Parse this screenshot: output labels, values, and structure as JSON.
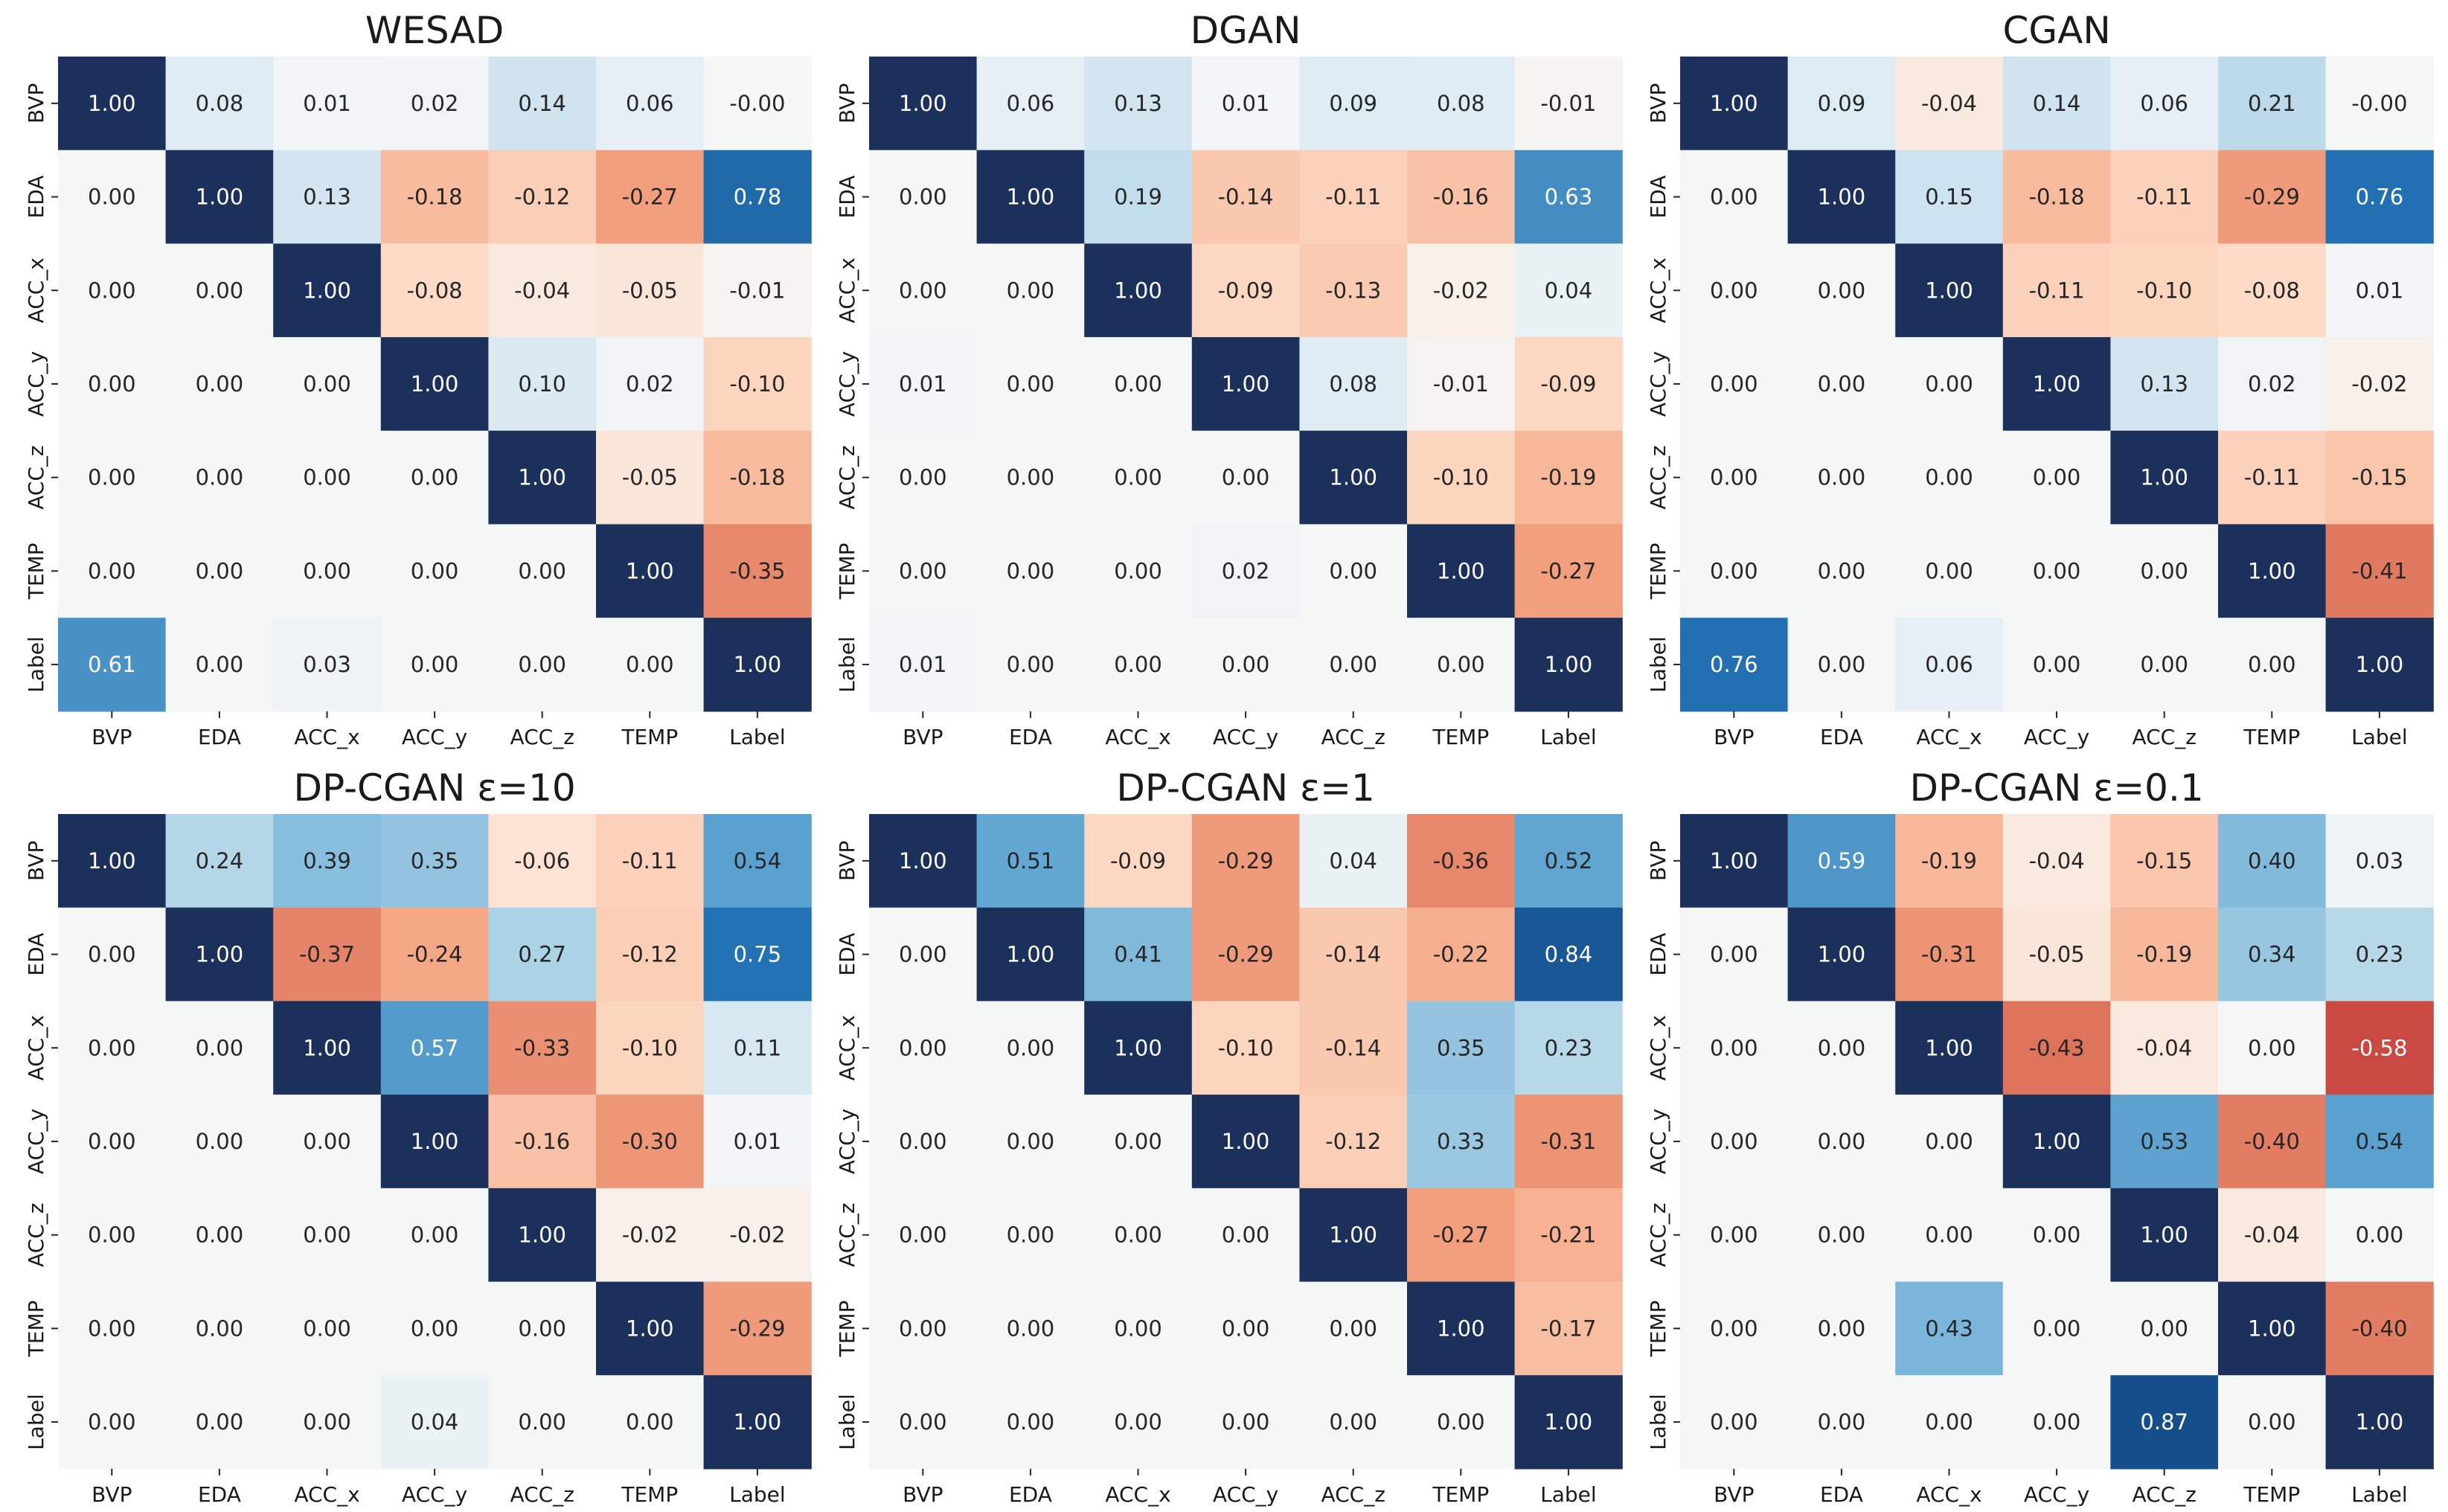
{
  "chart_data": [
    {
      "type": "heatmap",
      "title": "WESAD",
      "rows": [
        "BVP",
        "EDA",
        "ACC_x",
        "ACC_y",
        "ACC_z",
        "TEMP",
        "Label"
      ],
      "columns": [
        "BVP",
        "EDA",
        "ACC_x",
        "ACC_y",
        "ACC_z",
        "TEMP",
        "Label"
      ],
      "values": [
        [
          "1.00",
          "0.08",
          "0.01",
          "0.02",
          "0.14",
          "0.06",
          "-0.00"
        ],
        [
          "0.00",
          "1.00",
          "0.13",
          "-0.18",
          "-0.12",
          "-0.27",
          "0.78"
        ],
        [
          "0.00",
          "0.00",
          "1.00",
          "-0.08",
          "-0.04",
          "-0.05",
          "-0.01"
        ],
        [
          "0.00",
          "0.00",
          "0.00",
          "1.00",
          "0.10",
          "0.02",
          "-0.10"
        ],
        [
          "0.00",
          "0.00",
          "0.00",
          "0.00",
          "1.00",
          "-0.05",
          "-0.18"
        ],
        [
          "0.00",
          "0.00",
          "0.00",
          "0.00",
          "0.00",
          "1.00",
          "-0.35"
        ],
        [
          "0.61",
          "0.00",
          "0.03",
          "0.00",
          "0.00",
          "0.00",
          "1.00"
        ]
      ],
      "vmin": -1,
      "vmax": 1,
      "colormap": "RdBu"
    },
    {
      "type": "heatmap",
      "title": "DGAN",
      "rows": [
        "BVP",
        "EDA",
        "ACC_x",
        "ACC_y",
        "ACC_z",
        "TEMP",
        "Label"
      ],
      "columns": [
        "BVP",
        "EDA",
        "ACC_x",
        "ACC_y",
        "ACC_z",
        "TEMP",
        "Label"
      ],
      "values": [
        [
          "1.00",
          "0.06",
          "0.13",
          "0.01",
          "0.09",
          "0.08",
          "-0.01"
        ],
        [
          "0.00",
          "1.00",
          "0.19",
          "-0.14",
          "-0.11",
          "-0.16",
          "0.63"
        ],
        [
          "0.00",
          "0.00",
          "1.00",
          "-0.09",
          "-0.13",
          "-0.02",
          "0.04"
        ],
        [
          "0.01",
          "0.00",
          "0.00",
          "1.00",
          "0.08",
          "-0.01",
          "-0.09"
        ],
        [
          "0.00",
          "0.00",
          "0.00",
          "0.00",
          "1.00",
          "-0.10",
          "-0.19"
        ],
        [
          "0.00",
          "0.00",
          "0.00",
          "0.02",
          "0.00",
          "1.00",
          "-0.27"
        ],
        [
          "0.01",
          "0.00",
          "0.00",
          "0.00",
          "0.00",
          "0.00",
          "1.00"
        ]
      ],
      "vmin": -1,
      "vmax": 1,
      "colormap": "RdBu"
    },
    {
      "type": "heatmap",
      "title": "CGAN",
      "rows": [
        "BVP",
        "EDA",
        "ACC_x",
        "ACC_y",
        "ACC_z",
        "TEMP",
        "Label"
      ],
      "columns": [
        "BVP",
        "EDA",
        "ACC_x",
        "ACC_y",
        "ACC_z",
        "TEMP",
        "Label"
      ],
      "values": [
        [
          "1.00",
          "0.09",
          "-0.04",
          "0.14",
          "0.06",
          "0.21",
          "-0.00"
        ],
        [
          "0.00",
          "1.00",
          "0.15",
          "-0.18",
          "-0.11",
          "-0.29",
          "0.76"
        ],
        [
          "0.00",
          "0.00",
          "1.00",
          "-0.11",
          "-0.10",
          "-0.08",
          "0.01"
        ],
        [
          "0.00",
          "0.00",
          "0.00",
          "1.00",
          "0.13",
          "0.02",
          "-0.02"
        ],
        [
          "0.00",
          "0.00",
          "0.00",
          "0.00",
          "1.00",
          "-0.11",
          "-0.15"
        ],
        [
          "0.00",
          "0.00",
          "0.00",
          "0.00",
          "0.00",
          "1.00",
          "-0.41"
        ],
        [
          "0.76",
          "0.00",
          "0.06",
          "0.00",
          "0.00",
          "0.00",
          "1.00"
        ]
      ],
      "vmin": -1,
      "vmax": 1,
      "colormap": "RdBu"
    },
    {
      "type": "heatmap",
      "title": "DP-CGAN ε=10",
      "rows": [
        "BVP",
        "EDA",
        "ACC_x",
        "ACC_y",
        "ACC_z",
        "TEMP",
        "Label"
      ],
      "columns": [
        "BVP",
        "EDA",
        "ACC_x",
        "ACC_y",
        "ACC_z",
        "TEMP",
        "Label"
      ],
      "values": [
        [
          "1.00",
          "0.24",
          "0.39",
          "0.35",
          "-0.06",
          "-0.11",
          "0.54"
        ],
        [
          "0.00",
          "1.00",
          "-0.37",
          "-0.24",
          "0.27",
          "-0.12",
          "0.75"
        ],
        [
          "0.00",
          "0.00",
          "1.00",
          "0.57",
          "-0.33",
          "-0.10",
          "0.11"
        ],
        [
          "0.00",
          "0.00",
          "0.00",
          "1.00",
          "-0.16",
          "-0.30",
          "0.01"
        ],
        [
          "0.00",
          "0.00",
          "0.00",
          "0.00",
          "1.00",
          "-0.02",
          "-0.02"
        ],
        [
          "0.00",
          "0.00",
          "0.00",
          "0.00",
          "0.00",
          "1.00",
          "-0.29"
        ],
        [
          "0.00",
          "0.00",
          "0.00",
          "0.04",
          "0.00",
          "0.00",
          "1.00"
        ]
      ],
      "vmin": -1,
      "vmax": 1,
      "colormap": "RdBu"
    },
    {
      "type": "heatmap",
      "title": "DP-CGAN ε=1",
      "rows": [
        "BVP",
        "EDA",
        "ACC_x",
        "ACC_y",
        "ACC_z",
        "TEMP",
        "Label"
      ],
      "columns": [
        "BVP",
        "EDA",
        "ACC_x",
        "ACC_y",
        "ACC_z",
        "TEMP",
        "Label"
      ],
      "values": [
        [
          "1.00",
          "0.51",
          "-0.09",
          "-0.29",
          "0.04",
          "-0.36",
          "0.52"
        ],
        [
          "0.00",
          "1.00",
          "0.41",
          "-0.29",
          "-0.14",
          "-0.22",
          "0.84"
        ],
        [
          "0.00",
          "0.00",
          "1.00",
          "-0.10",
          "-0.14",
          "0.35",
          "0.23"
        ],
        [
          "0.00",
          "0.00",
          "0.00",
          "1.00",
          "-0.12",
          "0.33",
          "-0.31"
        ],
        [
          "0.00",
          "0.00",
          "0.00",
          "0.00",
          "1.00",
          "-0.27",
          "-0.21"
        ],
        [
          "0.00",
          "0.00",
          "0.00",
          "0.00",
          "0.00",
          "1.00",
          "-0.17"
        ],
        [
          "0.00",
          "0.00",
          "0.00",
          "0.00",
          "0.00",
          "0.00",
          "1.00"
        ]
      ],
      "vmin": -1,
      "vmax": 1,
      "colormap": "RdBu"
    },
    {
      "type": "heatmap",
      "title": "DP-CGAN ε=0.1",
      "rows": [
        "BVP",
        "EDA",
        "ACC_x",
        "ACC_y",
        "ACC_z",
        "TEMP",
        "Label"
      ],
      "columns": [
        "BVP",
        "EDA",
        "ACC_x",
        "ACC_y",
        "ACC_z",
        "TEMP",
        "Label"
      ],
      "values": [
        [
          "1.00",
          "0.59",
          "-0.19",
          "-0.04",
          "-0.15",
          "0.40",
          "0.03"
        ],
        [
          "0.00",
          "1.00",
          "-0.31",
          "-0.05",
          "-0.19",
          "0.34",
          "0.23"
        ],
        [
          "0.00",
          "0.00",
          "1.00",
          "-0.43",
          "-0.04",
          "0.00",
          "-0.58"
        ],
        [
          "0.00",
          "0.00",
          "0.00",
          "1.00",
          "0.53",
          "-0.40",
          "0.54"
        ],
        [
          "0.00",
          "0.00",
          "0.00",
          "0.00",
          "1.00",
          "-0.04",
          "0.00"
        ],
        [
          "0.00",
          "0.00",
          "0.43",
          "0.00",
          "0.00",
          "1.00",
          "-0.40"
        ],
        [
          "0.00",
          "0.00",
          "0.00",
          "0.00",
          "0.87",
          "0.00",
          "1.00"
        ]
      ],
      "vmin": -1,
      "vmax": 1,
      "colormap": "RdBu"
    }
  ]
}
